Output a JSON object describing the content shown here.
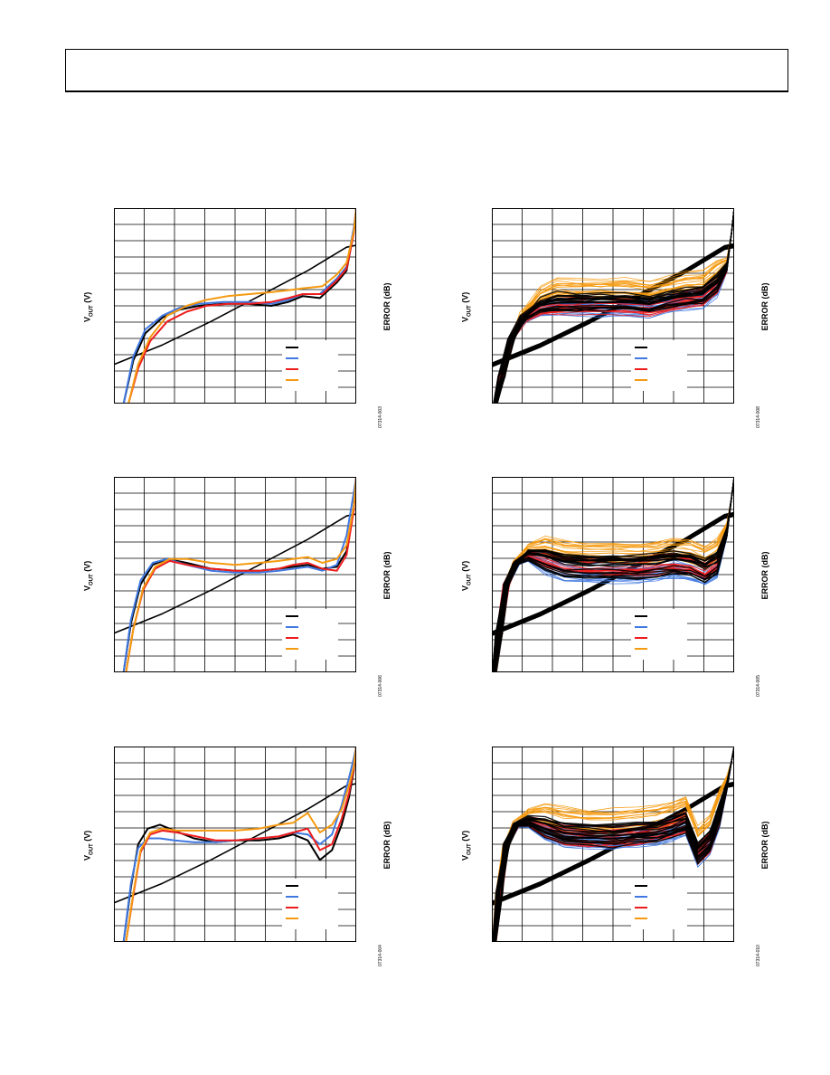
{
  "header": {
    "text": ""
  },
  "colors": {
    "black": "#000000",
    "blue": "#3f78e0",
    "red": "#ee1c1c",
    "orange": "#f59a10"
  },
  "panels": [
    {
      "ylabel_main": "V",
      "ylabel_sub": "OUT",
      "ylabel_tail": " (V)",
      "right_label": "ERROR (dB)",
      "fig_id": "07314-003",
      "legend_colors": [
        "black",
        "blue",
        "red",
        "orange"
      ]
    },
    {
      "ylabel_main": "V",
      "ylabel_sub": "OUT",
      "ylabel_tail": " (V)",
      "right_label": "ERROR (dB)",
      "fig_id": "07314-006",
      "legend_colors": [
        "black",
        "blue",
        "red",
        "orange"
      ]
    },
    {
      "ylabel_main": "V",
      "ylabel_sub": "OUT",
      "ylabel_tail": " (V)",
      "right_label": "ERROR (dB)",
      "fig_id": "07314-004",
      "legend_colors": [
        "black",
        "blue",
        "red",
        "orange"
      ]
    },
    {
      "ylabel_main": "V",
      "ylabel_sub": "OUT",
      "ylabel_tail": " (V)",
      "right_label": "ERROR (dB)",
      "fig_id": "07314-008",
      "legend_colors": [
        "black",
        "blue",
        "red",
        "orange"
      ]
    },
    {
      "ylabel_main": "V",
      "ylabel_sub": "OUT",
      "ylabel_tail": " (V)",
      "right_label": "ERROR (dB)",
      "fig_id": "07314-005",
      "legend_colors": [
        "black",
        "blue",
        "red",
        "orange"
      ]
    },
    {
      "ylabel_main": "V",
      "ylabel_sub": "OUT",
      "ylabel_tail": " (V)",
      "right_label": "ERROR (dB)",
      "fig_id": "07314-010",
      "legend_colors": [
        "black",
        "blue",
        "red",
        "orange"
      ]
    }
  ],
  "chart_data": [
    {
      "type": "line",
      "grid": true,
      "x_divisions": 8,
      "y_divisions": 12,
      "xlim": [
        0,
        1
      ],
      "ylim": [
        0,
        1
      ],
      "series": [
        {
          "color": "black",
          "role": "vout",
          "x": [
            0,
            0.2,
            0.4,
            0.6,
            0.8,
            0.96,
            1.0
          ],
          "y": [
            0.2,
            0.3,
            0.42,
            0.55,
            0.68,
            0.8,
            0.81
          ]
        },
        {
          "color": "black",
          "role": "error",
          "x": [
            0.04,
            0.08,
            0.13,
            0.2,
            0.27,
            0.35,
            0.45,
            0.55,
            0.65,
            0.72,
            0.78,
            0.85,
            0.92,
            0.96,
            0.99,
            1.0
          ],
          "y": [
            0.0,
            0.22,
            0.36,
            0.44,
            0.48,
            0.5,
            0.51,
            0.51,
            0.5,
            0.52,
            0.55,
            0.54,
            0.62,
            0.68,
            0.88,
            1.0
          ]
        },
        {
          "color": "blue",
          "role": "error",
          "x": [
            0.04,
            0.08,
            0.13,
            0.2,
            0.27,
            0.35,
            0.45,
            0.55,
            0.65,
            0.72,
            0.78,
            0.85,
            0.92,
            0.96,
            0.99,
            1.0
          ],
          "y": [
            0.0,
            0.24,
            0.38,
            0.45,
            0.49,
            0.51,
            0.52,
            0.52,
            0.51,
            0.53,
            0.56,
            0.56,
            0.64,
            0.7,
            0.9,
            1.0
          ]
        },
        {
          "color": "red",
          "role": "error",
          "x": [
            0.06,
            0.1,
            0.15,
            0.22,
            0.3,
            0.38,
            0.47,
            0.56,
            0.65,
            0.72,
            0.78,
            0.86,
            0.92,
            0.96,
            0.99,
            1.0
          ],
          "y": [
            0.0,
            0.18,
            0.32,
            0.42,
            0.47,
            0.5,
            0.51,
            0.51,
            0.52,
            0.54,
            0.56,
            0.56,
            0.63,
            0.69,
            0.87,
            1.0
          ]
        },
        {
          "color": "orange",
          "role": "error",
          "x": [
            0.06,
            0.1,
            0.15,
            0.22,
            0.3,
            0.38,
            0.47,
            0.56,
            0.65,
            0.72,
            0.78,
            0.86,
            0.92,
            0.96,
            0.99,
            1.0
          ],
          "y": [
            0.0,
            0.2,
            0.34,
            0.45,
            0.5,
            0.53,
            0.55,
            0.56,
            0.57,
            0.58,
            0.59,
            0.6,
            0.66,
            0.72,
            0.88,
            1.0
          ]
        }
      ]
    },
    {
      "type": "line",
      "grid": true,
      "x_divisions": 8,
      "y_divisions": 12,
      "xlim": [
        0,
        1
      ],
      "ylim": [
        0,
        1
      ],
      "series": [
        {
          "color": "black",
          "role": "vout",
          "x": [
            0,
            0.2,
            0.4,
            0.6,
            0.8,
            0.96,
            1.0
          ],
          "y": [
            0.2,
            0.3,
            0.42,
            0.55,
            0.68,
            0.8,
            0.81
          ]
        },
        {
          "color": "black",
          "role": "error",
          "x": [
            0.04,
            0.07,
            0.11,
            0.16,
            0.22,
            0.3,
            0.4,
            0.5,
            0.6,
            0.68,
            0.74,
            0.8,
            0.86,
            0.92,
            0.96,
            0.99,
            1.0
          ],
          "y": [
            0.0,
            0.25,
            0.45,
            0.55,
            0.58,
            0.56,
            0.53,
            0.52,
            0.52,
            0.53,
            0.54,
            0.55,
            0.53,
            0.54,
            0.62,
            0.85,
            1.0
          ]
        },
        {
          "color": "blue",
          "role": "error",
          "x": [
            0.04,
            0.07,
            0.11,
            0.16,
            0.22,
            0.3,
            0.4,
            0.5,
            0.6,
            0.68,
            0.74,
            0.8,
            0.86,
            0.92,
            0.96,
            0.99,
            1.0
          ],
          "y": [
            0.0,
            0.27,
            0.47,
            0.56,
            0.58,
            0.55,
            0.52,
            0.51,
            0.51,
            0.52,
            0.53,
            0.54,
            0.52,
            0.55,
            0.7,
            0.92,
            1.0
          ]
        },
        {
          "color": "red",
          "role": "error",
          "x": [
            0.05,
            0.08,
            0.12,
            0.17,
            0.23,
            0.3,
            0.4,
            0.5,
            0.6,
            0.68,
            0.74,
            0.8,
            0.86,
            0.92,
            0.96,
            0.99,
            1.0
          ],
          "y": [
            0.0,
            0.22,
            0.42,
            0.53,
            0.57,
            0.55,
            0.53,
            0.52,
            0.52,
            0.53,
            0.55,
            0.56,
            0.53,
            0.52,
            0.6,
            0.83,
            1.0
          ]
        },
        {
          "color": "orange",
          "role": "error",
          "x": [
            0.05,
            0.08,
            0.12,
            0.17,
            0.23,
            0.3,
            0.4,
            0.5,
            0.6,
            0.68,
            0.74,
            0.8,
            0.86,
            0.92,
            0.96,
            0.99,
            1.0
          ],
          "y": [
            0.0,
            0.22,
            0.43,
            0.54,
            0.58,
            0.58,
            0.56,
            0.55,
            0.56,
            0.57,
            0.58,
            0.59,
            0.56,
            0.58,
            0.65,
            0.85,
            1.0
          ]
        }
      ]
    },
    {
      "type": "line",
      "grid": true,
      "x_divisions": 8,
      "y_divisions": 12,
      "xlim": [
        0,
        1
      ],
      "ylim": [
        0,
        1
      ],
      "series": [
        {
          "color": "black",
          "role": "vout",
          "x": [
            0,
            0.2,
            0.4,
            0.6,
            0.8,
            0.96,
            1.0
          ],
          "y": [
            0.2,
            0.3,
            0.42,
            0.55,
            0.68,
            0.8,
            0.81
          ]
        },
        {
          "color": "black",
          "role": "error",
          "x": [
            0.04,
            0.07,
            0.1,
            0.14,
            0.19,
            0.25,
            0.33,
            0.42,
            0.5,
            0.6,
            0.68,
            0.74,
            0.8,
            0.85,
            0.9,
            0.94,
            0.97,
            0.99,
            1.0
          ],
          "y": [
            0.0,
            0.28,
            0.5,
            0.58,
            0.6,
            0.57,
            0.53,
            0.51,
            0.52,
            0.52,
            0.53,
            0.55,
            0.52,
            0.42,
            0.47,
            0.6,
            0.74,
            0.88,
            1.0
          ]
        },
        {
          "color": "blue",
          "role": "error",
          "x": [
            0.04,
            0.07,
            0.1,
            0.14,
            0.19,
            0.25,
            0.33,
            0.42,
            0.5,
            0.6,
            0.68,
            0.74,
            0.8,
            0.85,
            0.9,
            0.94,
            0.97,
            0.99,
            1.0
          ],
          "y": [
            0.0,
            0.3,
            0.48,
            0.53,
            0.53,
            0.52,
            0.51,
            0.51,
            0.52,
            0.53,
            0.54,
            0.56,
            0.55,
            0.5,
            0.55,
            0.7,
            0.84,
            0.94,
            1.0
          ]
        },
        {
          "color": "red",
          "role": "error",
          "x": [
            0.05,
            0.08,
            0.11,
            0.15,
            0.2,
            0.26,
            0.34,
            0.42,
            0.5,
            0.6,
            0.68,
            0.74,
            0.8,
            0.85,
            0.9,
            0.94,
            0.97,
            0.99,
            1.0
          ],
          "y": [
            0.0,
            0.24,
            0.46,
            0.55,
            0.57,
            0.56,
            0.54,
            0.52,
            0.52,
            0.53,
            0.54,
            0.56,
            0.58,
            0.47,
            0.5,
            0.63,
            0.76,
            0.89,
            1.0
          ]
        },
        {
          "color": "orange",
          "role": "error",
          "x": [
            0.05,
            0.08,
            0.11,
            0.15,
            0.2,
            0.26,
            0.34,
            0.42,
            0.5,
            0.6,
            0.68,
            0.74,
            0.8,
            0.85,
            0.9,
            0.94,
            0.97,
            0.99,
            1.0
          ],
          "y": [
            0.0,
            0.25,
            0.47,
            0.56,
            0.58,
            0.57,
            0.57,
            0.57,
            0.57,
            0.58,
            0.6,
            0.61,
            0.66,
            0.56,
            0.6,
            0.68,
            0.8,
            0.9,
            1.0
          ]
        }
      ]
    },
    {
      "type": "line",
      "grid": true,
      "x_divisions": 8,
      "y_divisions": 12,
      "xlim": [
        0,
        1
      ],
      "ylim": [
        0,
        1
      ],
      "ensemble": true,
      "base_profile": "p1",
      "traces_per_color": 20,
      "spread": 0.05
    },
    {
      "type": "line",
      "grid": true,
      "x_divisions": 8,
      "y_divisions": 12,
      "xlim": [
        0,
        1
      ],
      "ylim": [
        0,
        1
      ],
      "ensemble": true,
      "base_profile": "p2",
      "traces_per_color": 20,
      "spread": 0.06
    },
    {
      "type": "line",
      "grid": true,
      "x_divisions": 8,
      "y_divisions": 12,
      "xlim": [
        0,
        1
      ],
      "ylim": [
        0,
        1
      ],
      "ensemble": true,
      "base_profile": "p3",
      "traces_per_color": 20,
      "spread": 0.06
    }
  ]
}
